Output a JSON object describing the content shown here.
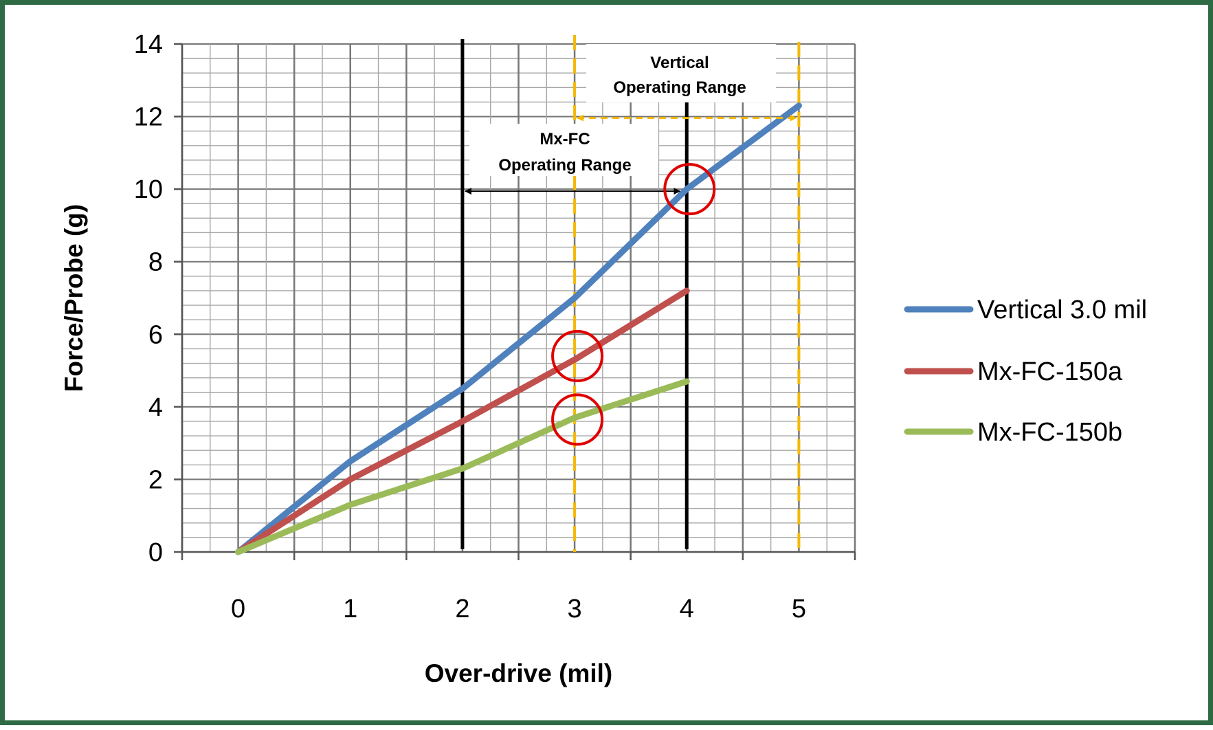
{
  "chart_data": {
    "type": "line",
    "title": "",
    "xlabel": "Over-drive (mil)",
    "ylabel": "Force/Probe (g)",
    "x_ticks": [
      "0",
      "1",
      "2",
      "3",
      "4",
      "5"
    ],
    "y_ticks": [
      "0",
      "2",
      "4",
      "6",
      "8",
      "10",
      "12",
      "14"
    ],
    "xlim": [
      -0.5,
      5.5
    ],
    "ylim": [
      0,
      14
    ],
    "grid": true,
    "legend_position": "right",
    "series": [
      {
        "name": "Vertical 3.0 mil",
        "color": "#4f81bd",
        "x": [
          0,
          1,
          2,
          3,
          4,
          5
        ],
        "y": [
          0,
          2.5,
          4.5,
          7.0,
          10.0,
          12.3
        ]
      },
      {
        "name": "Mx-FC-150a",
        "color": "#c0504d",
        "x": [
          0,
          1,
          2,
          3,
          4
        ],
        "y": [
          0,
          2.0,
          3.6,
          5.3,
          7.2
        ]
      },
      {
        "name": "Mx-FC-150b",
        "color": "#9bbb59",
        "x": [
          0,
          1,
          2,
          3,
          4
        ],
        "y": [
          0,
          1.3,
          2.3,
          3.7,
          4.7
        ]
      }
    ],
    "annotations": {
      "mxfc_range": {
        "lines": [
          "Mx-FC",
          "Operating Range"
        ],
        "x_from": 2,
        "x_to": 4,
        "y_arrow": 10,
        "line_color": "#000000"
      },
      "vertical_range": {
        "lines": [
          "Vertical",
          "Operating Range"
        ],
        "x_from": 3,
        "x_to": 5,
        "y_arrow": 12,
        "line_color": "#f5b800"
      },
      "circle_markers": [
        {
          "x": 4,
          "y": 10,
          "color": "#e00000"
        },
        {
          "x": 3,
          "y": 5.4,
          "color": "#e00000"
        },
        {
          "x": 3,
          "y": 3.65,
          "color": "#e00000"
        }
      ]
    }
  }
}
